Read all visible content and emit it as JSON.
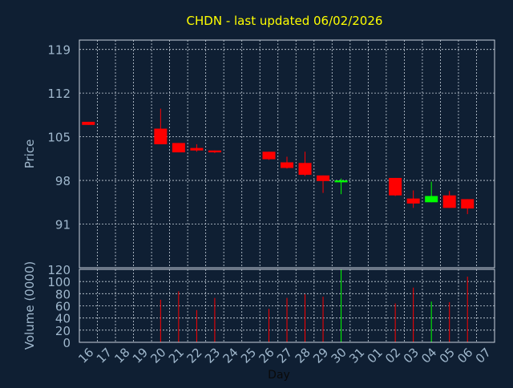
{
  "colors": {
    "background": "#0f1f33",
    "title": "#ffff00",
    "axis_text": "#9fb7cc",
    "grid": "#c8d2dc",
    "up": "#00ff00",
    "down": "#ff0000"
  },
  "chart_data": [
    {
      "type": "candlestick",
      "title": "CHDN - last updated 06/02/2026",
      "ylabel": "Price",
      "ylim": [
        84,
        120.5
      ],
      "yticks": [
        119,
        112,
        105,
        98,
        91
      ],
      "grid": true,
      "x": [
        "16",
        "17",
        "18",
        "19",
        "20",
        "21",
        "22",
        "23",
        "24",
        "25",
        "26",
        "27",
        "28",
        "29",
        "30",
        "31",
        "01",
        "02",
        "03",
        "04",
        "05",
        "06",
        "07"
      ],
      "candles": [
        {
          "x": "16",
          "open": 107.4,
          "high": 107.4,
          "low": 106.9,
          "close": 106.9
        },
        {
          "x": "20",
          "open": 106.3,
          "high": 109.5,
          "low": 103.8,
          "close": 103.8
        },
        {
          "x": "21",
          "open": 104.0,
          "high": 104.0,
          "low": 102.5,
          "close": 102.5
        },
        {
          "x": "22",
          "open": 103.2,
          "high": 103.8,
          "low": 102.6,
          "close": 102.8
        },
        {
          "x": "23",
          "open": 102.8,
          "high": 102.8,
          "low": 102.4,
          "close": 102.5
        },
        {
          "x": "26",
          "open": 102.6,
          "high": 102.6,
          "low": 101.3,
          "close": 101.4
        },
        {
          "x": "27",
          "open": 100.9,
          "high": 101.8,
          "low": 99.9,
          "close": 100.0
        },
        {
          "x": "28",
          "open": 100.8,
          "high": 102.6,
          "low": 98.7,
          "close": 98.9
        },
        {
          "x": "29",
          "open": 98.8,
          "high": 98.8,
          "low": 96.0,
          "close": 97.9
        },
        {
          "x": "30",
          "open": 97.7,
          "high": 98.3,
          "low": 95.8,
          "close": 98.0
        },
        {
          "x": "02",
          "open": 98.4,
          "high": 98.4,
          "low": 95.5,
          "close": 95.6
        },
        {
          "x": "03",
          "open": 95.1,
          "high": 96.4,
          "low": 93.6,
          "close": 94.3
        },
        {
          "x": "04",
          "open": 94.5,
          "high": 97.8,
          "low": 94.5,
          "close": 95.5
        },
        {
          "x": "05",
          "open": 95.6,
          "high": 96.3,
          "low": 93.6,
          "close": 93.6
        },
        {
          "x": "06",
          "open": 95.0,
          "high": 95.0,
          "low": 92.6,
          "close": 93.5
        }
      ]
    },
    {
      "type": "bar",
      "xlabel": "Day",
      "ylabel": "Volume (0000)",
      "ylim": [
        0,
        120
      ],
      "yticks": [
        120,
        100,
        80,
        60,
        40,
        20,
        0
      ],
      "grid": true,
      "categories": [
        "16",
        "17",
        "18",
        "19",
        "20",
        "21",
        "22",
        "23",
        "24",
        "25",
        "26",
        "27",
        "28",
        "29",
        "30",
        "31",
        "01",
        "02",
        "03",
        "04",
        "05",
        "06",
        "07"
      ],
      "values": [
        0,
        0,
        0,
        0,
        70,
        84,
        53,
        73,
        0,
        0,
        55,
        73,
        79,
        75,
        120,
        0,
        0,
        64,
        90,
        67,
        66,
        108,
        0
      ],
      "bar_colors": [
        "down",
        "down",
        "down",
        "down",
        "down",
        "down",
        "down",
        "down",
        "down",
        "down",
        "down",
        "down",
        "down",
        "down",
        "up",
        "down",
        "down",
        "down",
        "down",
        "up",
        "down",
        "down",
        "down"
      ]
    }
  ]
}
